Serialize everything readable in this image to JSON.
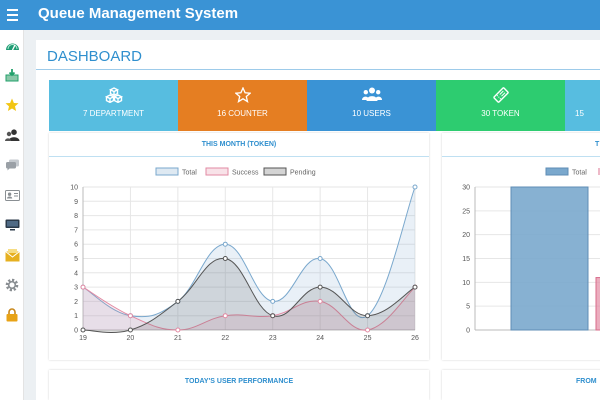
{
  "app": {
    "title": "Queue Management System"
  },
  "sidebar": {
    "items": [
      {
        "icon": "dashboard-icon",
        "color": "#1e9b73"
      },
      {
        "icon": "inbox-download-icon",
        "color": "#22a06b"
      },
      {
        "icon": "star-icon",
        "color": "#f2c514"
      },
      {
        "icon": "users-icon",
        "color": "#333333"
      },
      {
        "icon": "chat-icon",
        "color": "#9aa0a6"
      },
      {
        "icon": "id-card-icon",
        "color": "#8a8f93"
      },
      {
        "icon": "monitor-icon",
        "color": "#2b3a4a"
      },
      {
        "icon": "envelope-icon",
        "color": "#e6b020"
      },
      {
        "icon": "gear-icon",
        "color": "#8a8f93"
      },
      {
        "icon": "lock-icon",
        "color": "#e8a316"
      }
    ]
  },
  "page": {
    "title": "DASHBOARD"
  },
  "stats": [
    {
      "label": "7 DEPARTMENT",
      "icon": "cubes-icon",
      "color": "#57bde0"
    },
    {
      "label": "16 COUNTER",
      "icon": "star-outline-icon",
      "color": "#e57e22"
    },
    {
      "label": "10 USERS",
      "icon": "users-icon",
      "color": "#3a93d5"
    },
    {
      "label": "30 TOKEN",
      "icon": "ticket-icon",
      "color": "#2dcc70"
    },
    {
      "label": "15",
      "icon": "",
      "color": "#57bde0"
    }
  ],
  "panels": {
    "month": {
      "title": "THIS MONTH (TOKEN)"
    },
    "right": {
      "title": "T"
    },
    "today": {
      "title": "TODAY'S USER PERFORMANCE"
    },
    "from": {
      "title": "FROM"
    }
  },
  "chart_data": [
    {
      "type": "line",
      "title": "THIS MONTH (TOKEN)",
      "x": [
        "19",
        "20",
        "21",
        "22",
        "23",
        "24",
        "25",
        "26"
      ],
      "series": [
        {
          "name": "Total",
          "values": [
            3,
            1,
            2,
            6,
            2,
            5,
            1,
            10
          ],
          "color": "#7aa8cd"
        },
        {
          "name": "Success",
          "values": [
            3,
            1,
            0,
            1,
            1,
            2,
            0,
            3
          ],
          "color": "#e28aa3"
        },
        {
          "name": "Pending",
          "values": [
            0,
            0,
            2,
            5,
            1,
            3,
            1,
            3
          ],
          "color": "#555555"
        }
      ],
      "yticks": [
        "0",
        "1",
        "2",
        "3",
        "4",
        "5",
        "6",
        "7",
        "8",
        "9",
        "10"
      ],
      "ylim": [
        0,
        10
      ],
      "legend": "top",
      "grid": true
    },
    {
      "type": "bar",
      "legend_labels": [
        "Total"
      ],
      "series": [
        {
          "name": "Total",
          "values": [
            30
          ],
          "color": "#7aa8cd"
        },
        {
          "name": "",
          "values": [
            11
          ],
          "color": "#e28aa3"
        }
      ],
      "yticks": [
        "0",
        "5",
        "10",
        "15",
        "20",
        "25",
        "30"
      ],
      "ylim": [
        0,
        30
      ],
      "grid": true
    }
  ]
}
